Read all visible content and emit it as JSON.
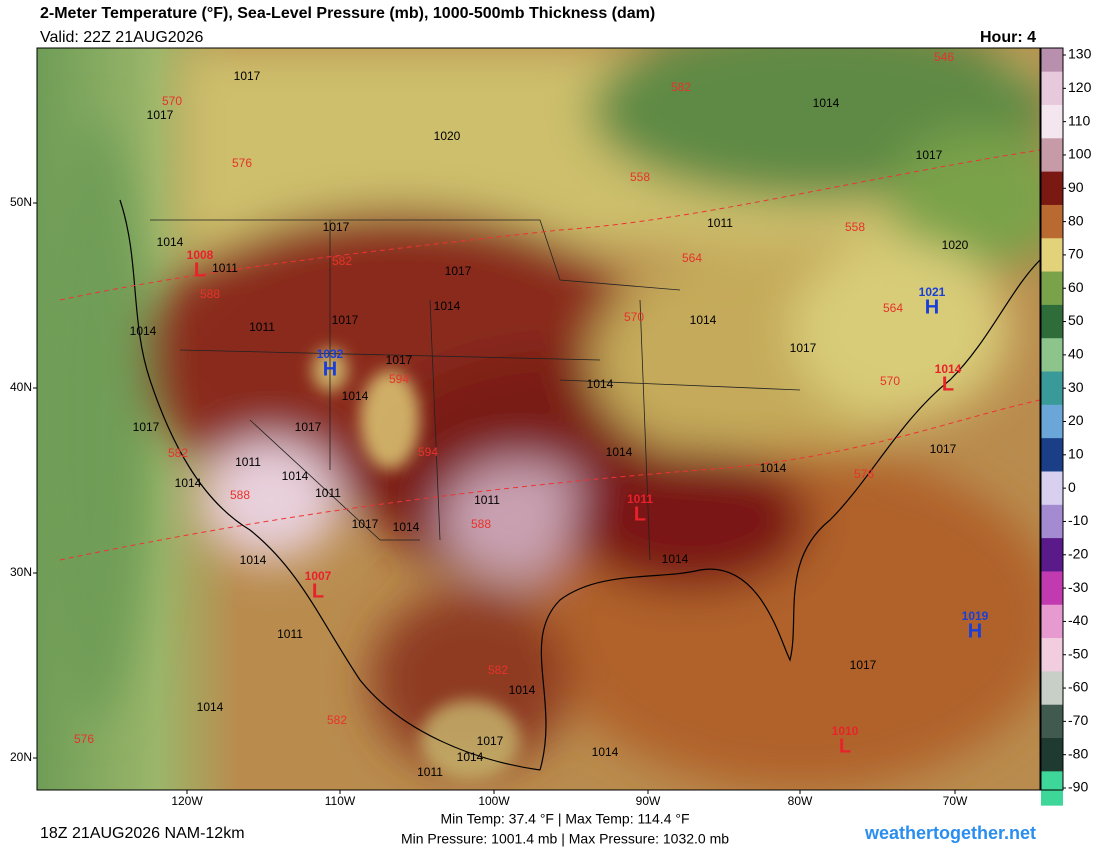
{
  "header": {
    "title": "2-Meter Temperature (°F), Sea-Level Pressure (mb), 1000-500mb Thickness (dam)",
    "valid": "Valid: 22Z 21AUG2026",
    "hour": "Hour: 4"
  },
  "map": {
    "lat_labels": [
      "50N",
      "40N",
      "30N",
      "20N"
    ],
    "lon_labels": [
      "120W",
      "110W",
      "100W",
      "90W",
      "80W",
      "70W"
    ],
    "isobar_labels": [
      1017,
      1017,
      1020,
      1014,
      1017,
      1017,
      1014,
      1011,
      1017,
      1011,
      1020,
      1014,
      1017,
      1011,
      1014,
      1014,
      1017,
      1014,
      1017,
      1014,
      1017,
      1017,
      1014,
      1014,
      1017,
      1011,
      1014,
      1014,
      1011,
      1011,
      1017,
      1014,
      1014,
      1014,
      1011,
      1014,
      1017,
      1014,
      1014,
      1017,
      1014,
      1011
    ],
    "thickness_labels": [
      570,
      582,
      546,
      576,
      558,
      558,
      564,
      570,
      564,
      570,
      588,
      582,
      594,
      594,
      582,
      588,
      588,
      576,
      582,
      582,
      576
    ],
    "centers": [
      {
        "value": 1019,
        "symbol": "H"
      },
      {
        "value": 1014,
        "symbol": "L"
      },
      {
        "value": 1010,
        "symbol": "L"
      },
      {
        "value": 1007,
        "symbol": "L"
      },
      {
        "value": 1008,
        "symbol": "L"
      },
      {
        "value": 1011,
        "symbol": "L"
      },
      {
        "value": 1032,
        "symbol": "H"
      },
      {
        "value": 1021,
        "symbol": "H"
      }
    ]
  },
  "colorbar": {
    "ticks": [
      130,
      120,
      110,
      100,
      90,
      80,
      70,
      60,
      50,
      40,
      30,
      20,
      10,
      0,
      -10,
      -20,
      -30,
      -40,
      -50,
      -60,
      -70,
      -80,
      -90
    ],
    "colors": [
      "#b98fae",
      "#e7c9dc",
      "#f4e6ee",
      "#c79aa8",
      "#7a1812",
      "#b96a30",
      "#e2d27a",
      "#7aa24a",
      "#2e6d3a",
      "#8cc48c",
      "#3a9a9a",
      "#6aa6d8",
      "#1a3f86",
      "#d8d0ee",
      "#a48ad0",
      "#5a1a8a",
      "#c23ab0",
      "#e79ad0",
      "#f2cde0",
      "#c8cfc6",
      "#405a50",
      "#1f3a30",
      "#3fd69a"
    ]
  },
  "footer": {
    "run": "18Z 21AUG2026 NAM-12km",
    "temps": "Min Temp:  37.4 °F | Max Temp: 114.4 °F",
    "pressures": "Min Pressure: 1001.4 mb | Max Pressure: 1032.0 mb",
    "site": "weathertogether.net"
  }
}
